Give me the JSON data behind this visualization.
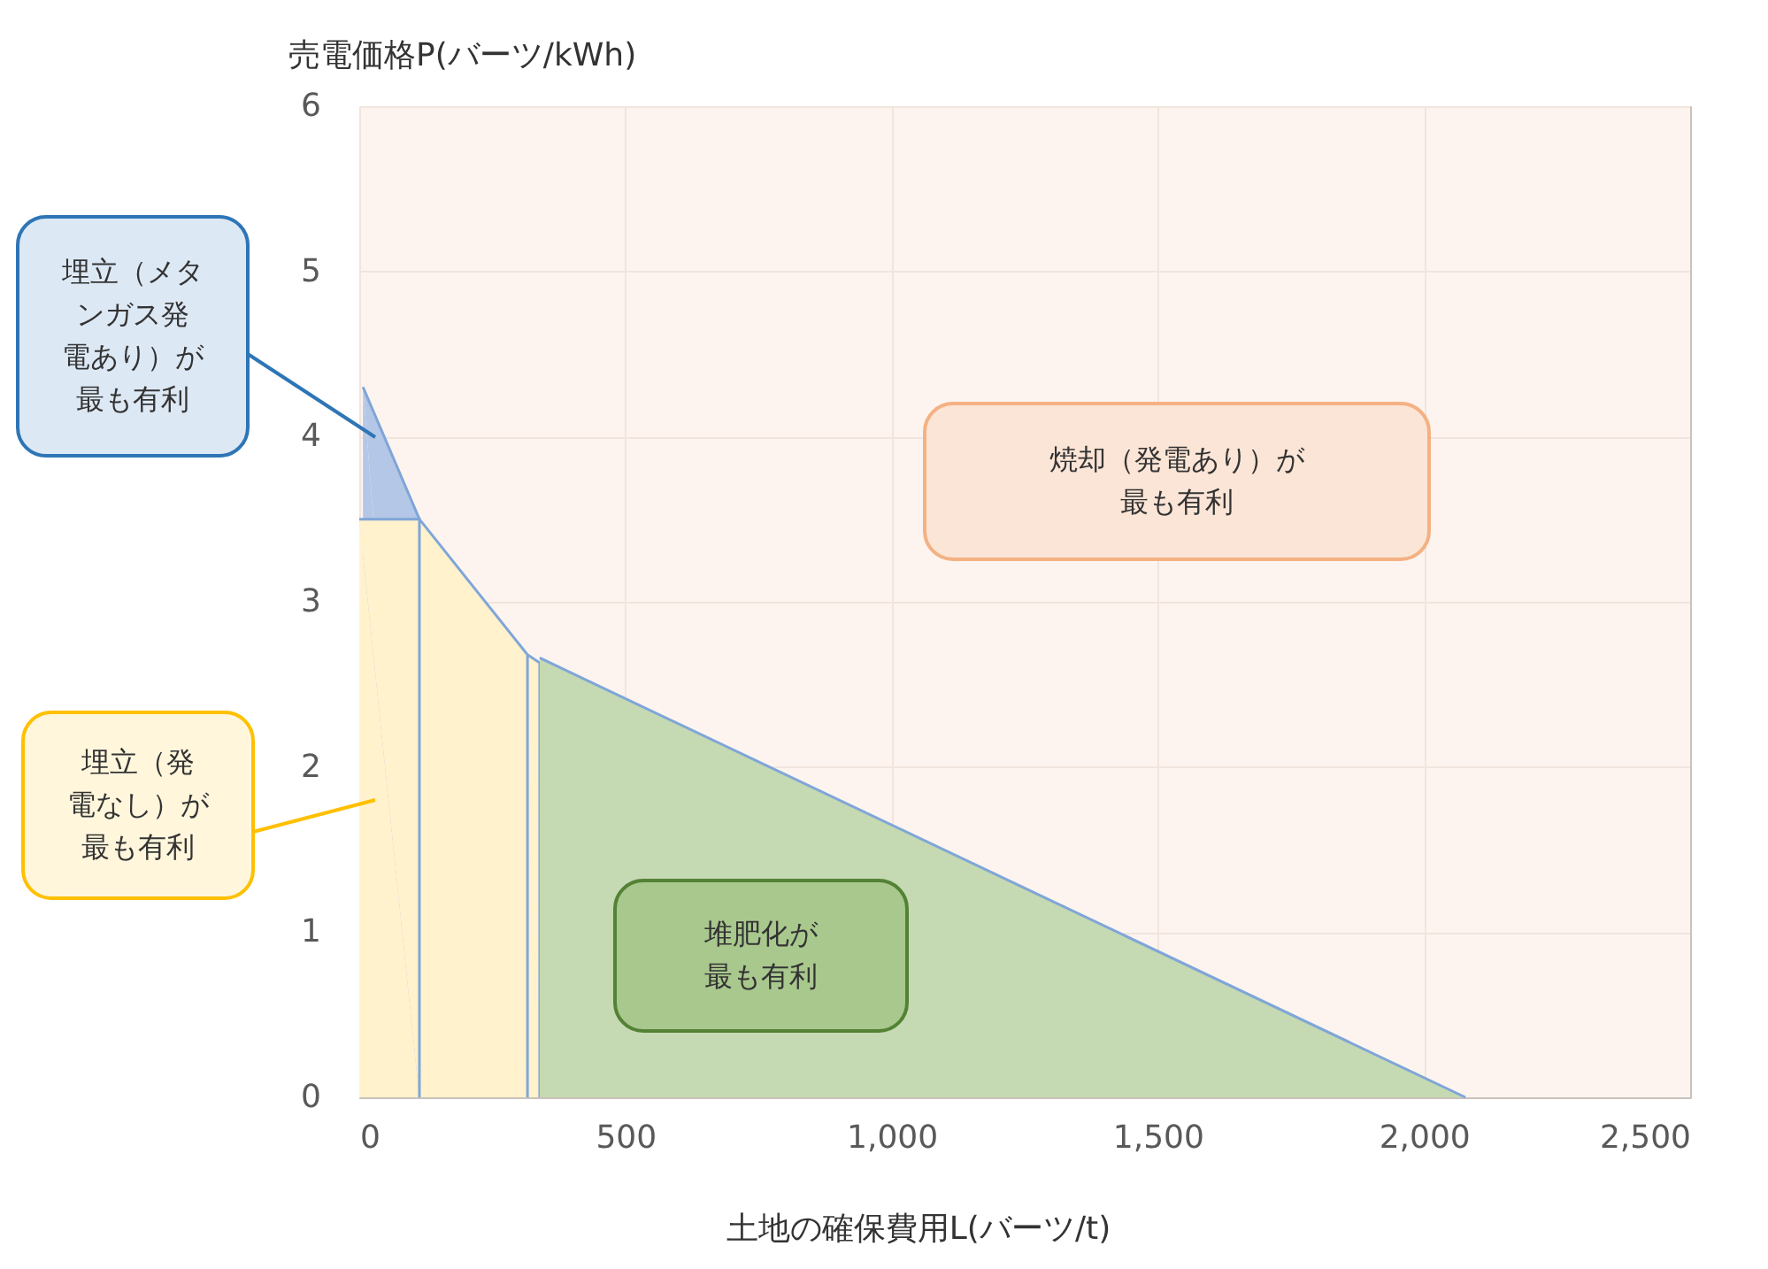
{
  "chart_data": {
    "type": "area",
    "xlabel": "土地の確保費用L(バーツ/t)",
    "ylabel": "売電価格P(バーツ/kWh)",
    "series": [
      {
        "color": "#b4c7e7",
        "x": [
          7,
          113
        ],
        "values": [
          4.3,
          3.5
        ]
      },
      {
        "color": "#fff2cc",
        "x": [
          0,
          113,
          316,
          339,
          339
        ],
        "values": [
          3.5,
          3.5,
          2.68,
          2.63,
          0
        ]
      },
      {
        "color": "#c5d9b2",
        "x": [
          339,
          2078
        ],
        "values": [
          2.66,
          0
        ]
      }
    ],
    "bands": [
      {
        "axis": "x",
        "from": 0,
        "to": 2500,
        "color": "#fdf0ea"
      }
    ],
    "annotations": [
      "埋立（メタンガス発電あり）が最も有利",
      "埋立（発電なし）が最も有利",
      "堆肥化が最も有利",
      "焼却（発電あり）が最も有利"
    ],
    "xlim": [
      0,
      2500
    ],
    "xticks": [
      0,
      500,
      {
        "value": 1000,
        "label": "1,000"
      },
      {
        "value": 1500,
        "label": "1,500"
      },
      {
        "value": 2000,
        "label": "2,000"
      },
      {
        "value": 2500,
        "label": "2,500"
      }
    ],
    "ylim": [
      0,
      6
    ],
    "yticks": [
      0,
      1,
      2,
      3,
      4,
      5,
      6
    ],
    "grid": true
  }
}
